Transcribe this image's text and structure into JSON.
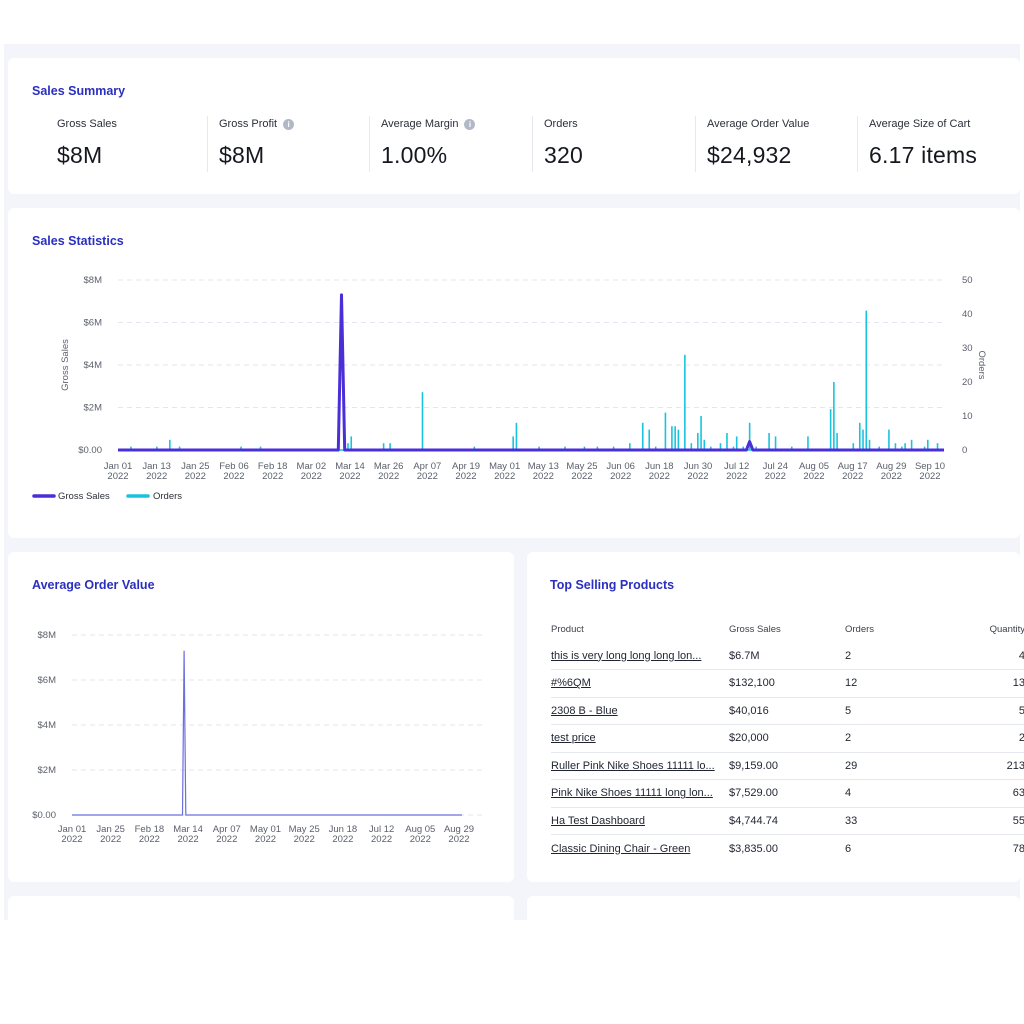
{
  "summary": {
    "title": "Sales Summary",
    "metrics": [
      {
        "label": "Gross Sales",
        "value": "$8M",
        "info": false
      },
      {
        "label": "Gross Profit",
        "value": "$8M",
        "info": true
      },
      {
        "label": "Average Margin",
        "value": "1.00%",
        "info": true
      },
      {
        "label": "Orders",
        "value": "320",
        "info": false
      },
      {
        "label": "Average Order Value",
        "value": "$24,932",
        "info": false
      },
      {
        "label": "Average Size of Cart",
        "value": "6.17 items",
        "info": false
      }
    ]
  },
  "sales_statistics": {
    "title": "Sales Statistics"
  },
  "aov": {
    "title": "Average Order Value"
  },
  "top_products": {
    "title": "Top Selling Products",
    "headers": {
      "product": "Product",
      "gross_sales": "Gross Sales",
      "orders": "Orders",
      "quantity": "Quantity"
    },
    "rows": [
      {
        "product": "this is very long long long lon...",
        "gross_sales": "$6.7M",
        "orders": "2",
        "quantity": "4"
      },
      {
        "product": "#%6QM",
        "gross_sales": "$132,100",
        "orders": "12",
        "quantity": "13"
      },
      {
        "product": "2308 B - Blue",
        "gross_sales": "$40,016",
        "orders": "5",
        "quantity": "5"
      },
      {
        "product": "test price",
        "gross_sales": "$20,000",
        "orders": "2",
        "quantity": "2"
      },
      {
        "product": "Ruller Pink Nike Shoes 11111 lo...",
        "gross_sales": "$9,159.00",
        "orders": "29",
        "quantity": "213"
      },
      {
        "product": "Pink Nike Shoes 11111 long lon...",
        "gross_sales": "$7,529.00",
        "orders": "4",
        "quantity": "63"
      },
      {
        "product": "Ha Test Dashboard",
        "gross_sales": "$4,744.74",
        "orders": "33",
        "quantity": "55"
      },
      {
        "product": "Classic Dining Chair - Green",
        "gross_sales": "$3,835.00",
        "orders": "6",
        "quantity": "78"
      }
    ]
  },
  "colors": {
    "accent": "#2a2fbf",
    "gross_sales": "#4a2fd8",
    "orders": "#18c4dd",
    "aov_line": "#6b6fe0"
  },
  "chart_data": [
    {
      "type": "line",
      "ylabel": "Gross Sales",
      "y2label": "Orders",
      "ylim": [
        0,
        8000000
      ],
      "y2lim": [
        0,
        50
      ],
      "yticks": [
        "$0.00",
        "$2M",
        "$4M",
        "$6M",
        "$8M"
      ],
      "y2ticks": [
        "0",
        "10",
        "20",
        "30",
        "40",
        "50"
      ],
      "x_tick_labels": [
        [
          "Jan 01",
          "2022"
        ],
        [
          "Jan 13",
          "2022"
        ],
        [
          "Jan 25",
          "2022"
        ],
        [
          "Feb 06",
          "2022"
        ],
        [
          "Feb 18",
          "2022"
        ],
        [
          "Mar 02",
          "2022"
        ],
        [
          "Mar 14",
          "2022"
        ],
        [
          "Mar 26",
          "2022"
        ],
        [
          "Apr 07",
          "2022"
        ],
        [
          "Apr 19",
          "2022"
        ],
        [
          "May 01",
          "2022"
        ],
        [
          "May 13",
          "2022"
        ],
        [
          "May 25",
          "2022"
        ],
        [
          "Jun 06",
          "2022"
        ],
        [
          "Jun 18",
          "2022"
        ],
        [
          "Jun 30",
          "2022"
        ],
        [
          "Jul 12",
          "2022"
        ],
        [
          "Jul 24",
          "2022"
        ],
        [
          "Aug 05",
          "2022"
        ],
        [
          "Aug 17",
          "2022"
        ],
        [
          "Aug 29",
          "2022"
        ],
        [
          "Sep 10",
          "2022"
        ]
      ],
      "x_range_days": [
        0,
        255
      ],
      "legend": "bottom-left",
      "grid": true,
      "series": [
        {
          "name": "Gross Sales",
          "axis": "left",
          "points": [
            [
              0,
              0
            ],
            [
              68,
              0
            ],
            [
              69,
              7300000
            ],
            [
              70,
              0
            ],
            [
              194,
              0
            ],
            [
              195,
              400000
            ],
            [
              196,
              0
            ],
            [
              255,
              0
            ]
          ]
        },
        {
          "name": "Orders",
          "axis": "right",
          "bars": [
            [
              4,
              1
            ],
            [
              12,
              1
            ],
            [
              16,
              3
            ],
            [
              19,
              1
            ],
            [
              38,
              1
            ],
            [
              44,
              1
            ],
            [
              71,
              2
            ],
            [
              72,
              4
            ],
            [
              82,
              2
            ],
            [
              84,
              2
            ],
            [
              94,
              17
            ],
            [
              110,
              1
            ],
            [
              122,
              4
            ],
            [
              123,
              8
            ],
            [
              130,
              1
            ],
            [
              138,
              1
            ],
            [
              144,
              1
            ],
            [
              148,
              1
            ],
            [
              153,
              1
            ],
            [
              158,
              2
            ],
            [
              162,
              8
            ],
            [
              164,
              6
            ],
            [
              166,
              1
            ],
            [
              169,
              11
            ],
            [
              171,
              7
            ],
            [
              172,
              7
            ],
            [
              173,
              6
            ],
            [
              175,
              28
            ],
            [
              177,
              2
            ],
            [
              179,
              5
            ],
            [
              180,
              10
            ],
            [
              181,
              3
            ],
            [
              183,
              1
            ],
            [
              186,
              2
            ],
            [
              188,
              5
            ],
            [
              190,
              1
            ],
            [
              191,
              4
            ],
            [
              193,
              1
            ],
            [
              195,
              8
            ],
            [
              197,
              1
            ],
            [
              201,
              5
            ],
            [
              203,
              4
            ],
            [
              208,
              1
            ],
            [
              213,
              4
            ],
            [
              220,
              12
            ],
            [
              221,
              20
            ],
            [
              222,
              5
            ],
            [
              227,
              2
            ],
            [
              229,
              8
            ],
            [
              230,
              6
            ],
            [
              231,
              41
            ],
            [
              232,
              3
            ],
            [
              235,
              1
            ],
            [
              238,
              6
            ],
            [
              240,
              2
            ],
            [
              242,
              1
            ],
            [
              243,
              2
            ],
            [
              245,
              3
            ],
            [
              249,
              1
            ],
            [
              250,
              3
            ],
            [
              253,
              2
            ]
          ]
        }
      ]
    },
    {
      "type": "line",
      "ylim": [
        0,
        8000000
      ],
      "yticks": [
        "$0.00",
        "$2M",
        "$4M",
        "$6M",
        "$8M"
      ],
      "x_tick_labels": [
        [
          "Jan 01",
          "2022"
        ],
        [
          "Jan 25",
          "2022"
        ],
        [
          "Feb 18",
          "2022"
        ],
        [
          "Mar 14",
          "2022"
        ],
        [
          "Apr 07",
          "2022"
        ],
        [
          "May 01",
          "2022"
        ],
        [
          "May 25",
          "2022"
        ],
        [
          "Jun 18",
          "2022"
        ],
        [
          "Jul 12",
          "2022"
        ],
        [
          "Aug 05",
          "2022"
        ],
        [
          "Aug 29",
          "2022"
        ]
      ],
      "x_range_days": [
        0,
        240
      ],
      "grid": true,
      "series": [
        {
          "name": "Average Order Value",
          "points": [
            [
              0,
              0
            ],
            [
              68,
              0
            ],
            [
              69,
              7300000
            ],
            [
              70,
              0
            ],
            [
              240,
              0
            ]
          ]
        }
      ]
    }
  ]
}
